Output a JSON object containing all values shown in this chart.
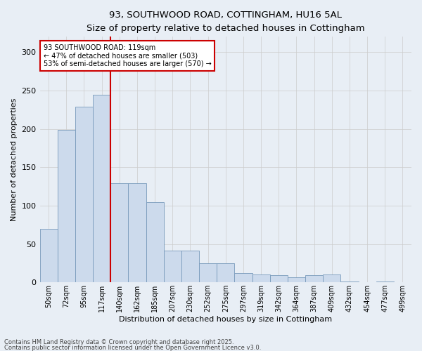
{
  "title_line1": "93, SOUTHWOOD ROAD, COTTINGHAM, HU16 5AL",
  "title_line2": "Size of property relative to detached houses in Cottingham",
  "xlabel": "Distribution of detached houses by size in Cottingham",
  "ylabel": "Number of detached properties",
  "bar_labels": [
    "50sqm",
    "72sqm",
    "95sqm",
    "117sqm",
    "140sqm",
    "162sqm",
    "185sqm",
    "207sqm",
    "230sqm",
    "252sqm",
    "275sqm",
    "297sqm",
    "319sqm",
    "342sqm",
    "364sqm",
    "387sqm",
    "409sqm",
    "432sqm",
    "454sqm",
    "477sqm",
    "499sqm"
  ],
  "bar_values": [
    70,
    199,
    229,
    244,
    129,
    129,
    104,
    41,
    41,
    25,
    25,
    12,
    10,
    9,
    7,
    9,
    10,
    1,
    0,
    1,
    0
  ],
  "bar_color": "#ccdaec",
  "bar_edge_color": "#7799bb",
  "red_line_color": "#cc0000",
  "red_line_x": 3.5,
  "annotation_text": "93 SOUTHWOOD ROAD: 119sqm\n← 47% of detached houses are smaller (503)\n53% of semi-detached houses are larger (570) →",
  "annotation_box_color": "#ffffff",
  "annotation_box_edge": "#cc0000",
  "annotation_text_color": "#000000",
  "grid_color": "#cccccc",
  "background_color": "#e8eef5",
  "plot_bg_color": "#e8eef5",
  "ylim": [
    0,
    320
  ],
  "yticks": [
    0,
    50,
    100,
    150,
    200,
    250,
    300
  ],
  "footer_line1": "Contains HM Land Registry data © Crown copyright and database right 2025.",
  "footer_line2": "Contains public sector information licensed under the Open Government Licence v3.0."
}
